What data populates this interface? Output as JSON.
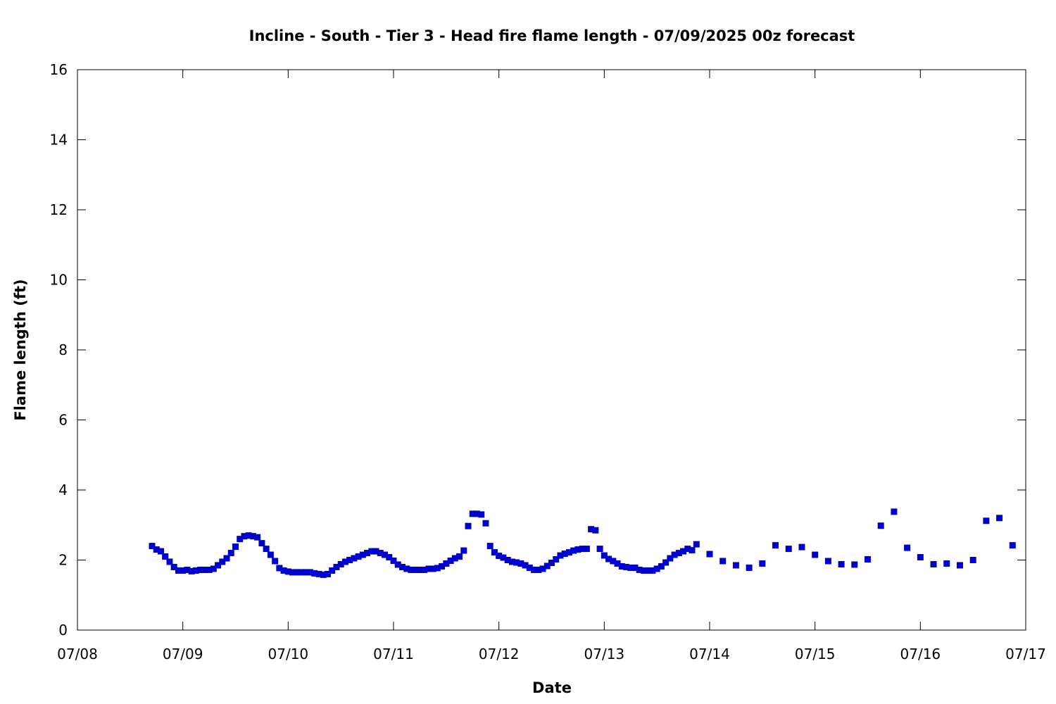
{
  "chart_data": {
    "type": "scatter",
    "title": "Incline - South - Tier 3 - Head fire flame length - 07/09/2025 00z forecast",
    "xlabel": "Date",
    "ylabel": "Flame length (ft)",
    "xlim": [
      "2025-07-08 00:00",
      "2025-07-17 00:00"
    ],
    "ylim": [
      0,
      16
    ],
    "x_tick_labels": [
      "07/08",
      "07/09",
      "07/10",
      "07/11",
      "07/12",
      "07/13",
      "07/14",
      "07/15",
      "07/16",
      "07/17"
    ],
    "y_tick_labels": [
      "0",
      "2",
      "4",
      "6",
      "8",
      "10",
      "12",
      "14",
      "16"
    ],
    "y_ticks": [
      0,
      2,
      4,
      6,
      8,
      10,
      12,
      14,
      16
    ],
    "grid": false,
    "marker_color": "#0000cc",
    "series": [
      {
        "points": [
          [
            "2025-07-08 17:00",
            2.4
          ],
          [
            "2025-07-08 18:00",
            2.3
          ],
          [
            "2025-07-08 19:00",
            2.25
          ],
          [
            "2025-07-08 20:00",
            2.1
          ],
          [
            "2025-07-08 21:00",
            1.95
          ],
          [
            "2025-07-08 22:00",
            1.8
          ],
          [
            "2025-07-08 23:00",
            1.7
          ],
          [
            "2025-07-09 00:00",
            1.7
          ],
          [
            "2025-07-09 01:00",
            1.72
          ],
          [
            "2025-07-09 02:00",
            1.68
          ],
          [
            "2025-07-09 03:00",
            1.7
          ],
          [
            "2025-07-09 04:00",
            1.72
          ],
          [
            "2025-07-09 05:00",
            1.72
          ],
          [
            "2025-07-09 06:00",
            1.72
          ],
          [
            "2025-07-09 07:00",
            1.75
          ],
          [
            "2025-07-09 08:00",
            1.85
          ],
          [
            "2025-07-09 09:00",
            1.95
          ],
          [
            "2025-07-09 10:00",
            2.05
          ],
          [
            "2025-07-09 11:00",
            2.2
          ],
          [
            "2025-07-09 12:00",
            2.38
          ],
          [
            "2025-07-09 13:00",
            2.6
          ],
          [
            "2025-07-09 14:00",
            2.68
          ],
          [
            "2025-07-09 15:00",
            2.7
          ],
          [
            "2025-07-09 16:00",
            2.68
          ],
          [
            "2025-07-09 17:00",
            2.65
          ],
          [
            "2025-07-09 18:00",
            2.48
          ],
          [
            "2025-07-09 19:00",
            2.32
          ],
          [
            "2025-07-09 20:00",
            2.15
          ],
          [
            "2025-07-09 21:00",
            1.97
          ],
          [
            "2025-07-09 22:00",
            1.77
          ],
          [
            "2025-07-09 23:00",
            1.7
          ],
          [
            "2025-07-10 00:00",
            1.67
          ],
          [
            "2025-07-10 01:00",
            1.65
          ],
          [
            "2025-07-10 02:00",
            1.65
          ],
          [
            "2025-07-10 03:00",
            1.65
          ],
          [
            "2025-07-10 04:00",
            1.65
          ],
          [
            "2025-07-10 05:00",
            1.65
          ],
          [
            "2025-07-10 06:00",
            1.62
          ],
          [
            "2025-07-10 07:00",
            1.6
          ],
          [
            "2025-07-10 08:00",
            1.58
          ],
          [
            "2025-07-10 09:00",
            1.6
          ],
          [
            "2025-07-10 10:00",
            1.7
          ],
          [
            "2025-07-10 11:00",
            1.8
          ],
          [
            "2025-07-10 12:00",
            1.88
          ],
          [
            "2025-07-10 13:00",
            1.95
          ],
          [
            "2025-07-10 14:00",
            2.0
          ],
          [
            "2025-07-10 15:00",
            2.05
          ],
          [
            "2025-07-10 16:00",
            2.1
          ],
          [
            "2025-07-10 17:00",
            2.15
          ],
          [
            "2025-07-10 18:00",
            2.2
          ],
          [
            "2025-07-10 19:00",
            2.25
          ],
          [
            "2025-07-10 20:00",
            2.25
          ],
          [
            "2025-07-10 21:00",
            2.2
          ],
          [
            "2025-07-10 22:00",
            2.15
          ],
          [
            "2025-07-10 23:00",
            2.08
          ],
          [
            "2025-07-11 00:00",
            1.98
          ],
          [
            "2025-07-11 01:00",
            1.87
          ],
          [
            "2025-07-11 02:00",
            1.8
          ],
          [
            "2025-07-11 03:00",
            1.75
          ],
          [
            "2025-07-11 04:00",
            1.72
          ],
          [
            "2025-07-11 05:00",
            1.72
          ],
          [
            "2025-07-11 06:00",
            1.72
          ],
          [
            "2025-07-11 07:00",
            1.72
          ],
          [
            "2025-07-11 08:00",
            1.75
          ],
          [
            "2025-07-11 09:00",
            1.75
          ],
          [
            "2025-07-11 10:00",
            1.77
          ],
          [
            "2025-07-11 11:00",
            1.82
          ],
          [
            "2025-07-11 12:00",
            1.9
          ],
          [
            "2025-07-11 13:00",
            1.98
          ],
          [
            "2025-07-11 14:00",
            2.05
          ],
          [
            "2025-07-11 15:00",
            2.1
          ],
          [
            "2025-07-11 16:00",
            2.27
          ],
          [
            "2025-07-11 17:00",
            2.97
          ],
          [
            "2025-07-11 18:00",
            3.32
          ],
          [
            "2025-07-11 19:00",
            3.32
          ],
          [
            "2025-07-11 20:00",
            3.3
          ],
          [
            "2025-07-11 21:00",
            3.05
          ],
          [
            "2025-07-11 22:00",
            2.4
          ],
          [
            "2025-07-11 23:00",
            2.22
          ],
          [
            "2025-07-12 00:00",
            2.12
          ],
          [
            "2025-07-12 01:00",
            2.07
          ],
          [
            "2025-07-12 02:00",
            2.0
          ],
          [
            "2025-07-12 03:00",
            1.95
          ],
          [
            "2025-07-12 04:00",
            1.93
          ],
          [
            "2025-07-12 05:00",
            1.9
          ],
          [
            "2025-07-12 06:00",
            1.85
          ],
          [
            "2025-07-12 07:00",
            1.78
          ],
          [
            "2025-07-12 08:00",
            1.72
          ],
          [
            "2025-07-12 09:00",
            1.72
          ],
          [
            "2025-07-12 10:00",
            1.75
          ],
          [
            "2025-07-12 11:00",
            1.83
          ],
          [
            "2025-07-12 12:00",
            1.92
          ],
          [
            "2025-07-12 13:00",
            2.02
          ],
          [
            "2025-07-12 14:00",
            2.13
          ],
          [
            "2025-07-12 15:00",
            2.18
          ],
          [
            "2025-07-12 16:00",
            2.22
          ],
          [
            "2025-07-12 17:00",
            2.27
          ],
          [
            "2025-07-12 18:00",
            2.3
          ],
          [
            "2025-07-12 19:00",
            2.32
          ],
          [
            "2025-07-12 20:00",
            2.32
          ],
          [
            "2025-07-12 21:00",
            2.88
          ],
          [
            "2025-07-12 22:00",
            2.85
          ],
          [
            "2025-07-12 23:00",
            2.32
          ],
          [
            "2025-07-13 00:00",
            2.13
          ],
          [
            "2025-07-13 01:00",
            2.03
          ],
          [
            "2025-07-13 02:00",
            1.97
          ],
          [
            "2025-07-13 03:00",
            1.9
          ],
          [
            "2025-07-13 04:00",
            1.82
          ],
          [
            "2025-07-13 05:00",
            1.8
          ],
          [
            "2025-07-13 06:00",
            1.78
          ],
          [
            "2025-07-13 07:00",
            1.78
          ],
          [
            "2025-07-13 08:00",
            1.72
          ],
          [
            "2025-07-13 09:00",
            1.7
          ],
          [
            "2025-07-13 10:00",
            1.7
          ],
          [
            "2025-07-13 11:00",
            1.7
          ],
          [
            "2025-07-13 12:00",
            1.75
          ],
          [
            "2025-07-13 13:00",
            1.82
          ],
          [
            "2025-07-13 14:00",
            1.93
          ],
          [
            "2025-07-13 15:00",
            2.05
          ],
          [
            "2025-07-13 16:00",
            2.15
          ],
          [
            "2025-07-13 17:00",
            2.2
          ],
          [
            "2025-07-13 18:00",
            2.25
          ],
          [
            "2025-07-13 19:00",
            2.32
          ],
          [
            "2025-07-13 20:00",
            2.28
          ],
          [
            "2025-07-13 21:00",
            2.45
          ],
          [
            "2025-07-14 00:00",
            2.17
          ],
          [
            "2025-07-14 03:00",
            1.97
          ],
          [
            "2025-07-14 06:00",
            1.85
          ],
          [
            "2025-07-14 09:00",
            1.78
          ],
          [
            "2025-07-14 12:00",
            1.9
          ],
          [
            "2025-07-14 15:00",
            2.42
          ],
          [
            "2025-07-14 18:00",
            2.32
          ],
          [
            "2025-07-14 21:00",
            2.37
          ],
          [
            "2025-07-15 00:00",
            2.15
          ],
          [
            "2025-07-15 03:00",
            1.97
          ],
          [
            "2025-07-15 06:00",
            1.88
          ],
          [
            "2025-07-15 09:00",
            1.87
          ],
          [
            "2025-07-15 12:00",
            2.02
          ],
          [
            "2025-07-15 15:00",
            2.98
          ],
          [
            "2025-07-15 18:00",
            3.38
          ],
          [
            "2025-07-15 21:00",
            2.35
          ],
          [
            "2025-07-16 00:00",
            2.08
          ],
          [
            "2025-07-16 03:00",
            1.88
          ],
          [
            "2025-07-16 06:00",
            1.9
          ],
          [
            "2025-07-16 09:00",
            1.85
          ],
          [
            "2025-07-16 12:00",
            2.0
          ],
          [
            "2025-07-16 15:00",
            3.12
          ],
          [
            "2025-07-16 18:00",
            3.2
          ],
          [
            "2025-07-16 21:00",
            2.42
          ]
        ]
      }
    ]
  }
}
